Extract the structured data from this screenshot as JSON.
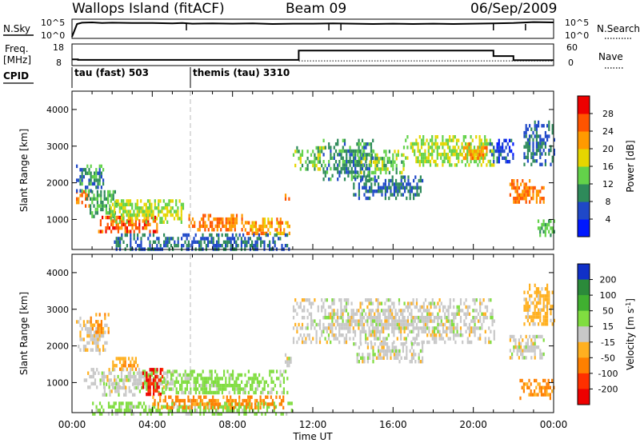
{
  "header": {
    "station": "Wallops Island (fitACF)",
    "beam": "Beam 09",
    "date": "06/Sep/2009"
  },
  "noise_panel": {
    "left_label": "N.Sky",
    "right_label": "N.Search",
    "tick_top": "10^5",
    "tick_bottom": "10^0",
    "series": {
      "x_hours": [
        0.0,
        0.25,
        0.5,
        1,
        1.5,
        2,
        3,
        4,
        5,
        5.5,
        6,
        7,
        8,
        9,
        10,
        11,
        12,
        13,
        14,
        15,
        16,
        17,
        18,
        19,
        20,
        21,
        22,
        23,
        24
      ],
      "log_values": [
        0.0,
        4.0,
        4.4,
        4.5,
        4.3,
        4.4,
        4.3,
        4.3,
        4.2,
        4.3,
        4.1,
        4.2,
        4.1,
        4.2,
        4.0,
        4.1,
        4.1,
        4.2,
        4.1,
        4.0,
        4.1,
        4.0,
        4.1,
        4.0,
        4.1,
        4.2,
        4.3,
        4.6,
        4.5
      ]
    },
    "spikes_hours": [
      5.7,
      12.8,
      13.4,
      21.0,
      22.6
    ]
  },
  "freq_panel": {
    "left_label_1": "Freq.",
    "left_label_2": "[MHz]",
    "right_label": "Nave",
    "tick_left_top": "18",
    "tick_left_bottom": "8",
    "tick_right_top": "60",
    "tick_right_bottom": "0",
    "freq_steps": [
      {
        "from": 0.0,
        "to": 0.3,
        "mhz": 10.5
      },
      {
        "from": 0.3,
        "to": 11.3,
        "mhz": 10.2
      },
      {
        "from": 11.3,
        "to": 21.0,
        "mhz": 15.3
      },
      {
        "from": 21.0,
        "to": 22.0,
        "mhz": 12.3
      },
      {
        "from": 22.0,
        "to": 24.0,
        "mhz": 10.1
      }
    ],
    "nave_level": 10
  },
  "cpid": {
    "label": "CPID",
    "modes": [
      {
        "text": "tau (fast) 503",
        "start_hour": 0.0
      },
      {
        "text": "themis (tau) 3310",
        "start_hour": 5.9
      }
    ]
  },
  "chart_data": [
    {
      "type": "heatmap",
      "title": "Power",
      "ylabel": "Slant Range [km]",
      "xlabel": "Time UT",
      "xlim": [
        0,
        24
      ],
      "ylim": [
        180,
        4500
      ],
      "x_ticks": [
        "00:00",
        "04:00",
        "08:00",
        "12:00",
        "16:00",
        "20:00",
        "00:00"
      ],
      "y_ticks": [
        1000,
        2000,
        3000,
        4000
      ],
      "colorbar": {
        "label": "Power [dB]",
        "levels": [
          4,
          8,
          12,
          16,
          20,
          24,
          28
        ],
        "colors": [
          "#0018ff",
          "#1f48c8",
          "#2e8a5a",
          "#63d24a",
          "#e6d600",
          "#ff9a00",
          "#ff5400",
          "#ee0000"
        ]
      },
      "regions": [
        {
          "x": [
            0.2,
            0.9
          ],
          "y": [
            1400,
            1800
          ],
          "level": 24
        },
        {
          "x": [
            0.2,
            1.6
          ],
          "y": [
            1800,
            2500
          ],
          "level": 10
        },
        {
          "x": [
            0.7,
            2.2
          ],
          "y": [
            1100,
            1800
          ],
          "level": 12
        },
        {
          "x": [
            1.3,
            4.2
          ],
          "y": [
            650,
            1100
          ],
          "level": 26
        },
        {
          "x": [
            1.9,
            5.5
          ],
          "y": [
            950,
            1550
          ],
          "level": 16
        },
        {
          "x": [
            5.8,
            8.8
          ],
          "y": [
            700,
            1150
          ],
          "level": 24
        },
        {
          "x": [
            8.6,
            10.8
          ],
          "y": [
            650,
            1050
          ],
          "level": 22
        },
        {
          "x": [
            2.0,
            10.8
          ],
          "y": [
            180,
            620
          ],
          "level": 8
        },
        {
          "x": [
            10.6,
            11.0
          ],
          "y": [
            1500,
            1800
          ],
          "level": 24
        },
        {
          "x": [
            11.0,
            12.6
          ],
          "y": [
            2400,
            3000
          ],
          "level": 14
        },
        {
          "x": [
            12.5,
            15.0
          ],
          "y": [
            2100,
            3200
          ],
          "level": 10
        },
        {
          "x": [
            14.2,
            16.5
          ],
          "y": [
            2300,
            2900
          ],
          "level": 14
        },
        {
          "x": [
            14.0,
            17.5
          ],
          "y": [
            1600,
            2200
          ],
          "level": 8
        },
        {
          "x": [
            16.5,
            21.0
          ],
          "y": [
            2500,
            3300
          ],
          "level": 16
        },
        {
          "x": [
            19.4,
            20.8
          ],
          "y": [
            2700,
            3100
          ],
          "level": 22
        },
        {
          "x": [
            20.8,
            22.0
          ],
          "y": [
            2600,
            3200
          ],
          "level": 6
        },
        {
          "x": [
            21.8,
            23.5
          ],
          "y": [
            1500,
            2100
          ],
          "level": 24
        },
        {
          "x": [
            22.5,
            24.0
          ],
          "y": [
            2500,
            3700
          ],
          "level": 8
        },
        {
          "x": [
            23.2,
            24.0
          ],
          "y": [
            600,
            1000
          ],
          "level": 12
        }
      ]
    },
    {
      "type": "heatmap",
      "title": "Velocity",
      "ylabel": "Slant Range [km]",
      "xlabel": "Time UT",
      "xlim": [
        0,
        24
      ],
      "ylim": [
        180,
        4500
      ],
      "x_ticks": [
        "00:00",
        "04:00",
        "08:00",
        "12:00",
        "16:00",
        "20:00",
        "00:00"
      ],
      "y_ticks": [
        1000,
        2000,
        3000,
        4000
      ],
      "colorbar": {
        "label_main": "Velocity [m s",
        "label_sup": "-1",
        "label_end": "]",
        "levels": [
          200,
          100,
          50,
          15,
          -15,
          -50,
          -100,
          -200
        ],
        "colors": [
          "#1030c8",
          "#2b8a3a",
          "#40b030",
          "#80dd40",
          "#c8c8c8",
          "#ffb020",
          "#ff8000",
          "#ff3000",
          "#ee0000"
        ]
      },
      "regions": [
        {
          "x": [
            0.2,
            1.7
          ],
          "y": [
            1800,
            2800
          ],
          "level": -5
        },
        {
          "x": [
            0.9,
            1.8
          ],
          "y": [
            2400,
            2900
          ],
          "level": -60
        },
        {
          "x": [
            0.5,
            5.0
          ],
          "y": [
            900,
            1400
          ],
          "level": 0
        },
        {
          "x": [
            2.0,
            3.3
          ],
          "y": [
            1350,
            1700
          ],
          "level": -40
        },
        {
          "x": [
            3.5,
            10.8
          ],
          "y": [
            700,
            1350
          ],
          "level": 30
        },
        {
          "x": [
            1.5,
            3.5
          ],
          "y": [
            700,
            1000
          ],
          "level": 0
        },
        {
          "x": [
            3.5,
            4.5
          ],
          "y": [
            700,
            1400
          ],
          "level": -200
        },
        {
          "x": [
            1.0,
            11.0
          ],
          "y": [
            180,
            480
          ],
          "level": 30
        },
        {
          "x": [
            4.0,
            10.5
          ],
          "y": [
            350,
            650
          ],
          "level": -60
        },
        {
          "x": [
            10.6,
            11.0
          ],
          "y": [
            1400,
            1800
          ],
          "level": 0
        },
        {
          "x": [
            11.0,
            21.0
          ],
          "y": [
            2100,
            3300
          ],
          "level": 0
        },
        {
          "x": [
            14.0,
            17.5
          ],
          "y": [
            1600,
            2100
          ],
          "level": 0
        },
        {
          "x": [
            21.8,
            23.5
          ],
          "y": [
            1700,
            2300
          ],
          "level": 0
        },
        {
          "x": [
            22.3,
            24.0
          ],
          "y": [
            600,
            1100
          ],
          "level": -60
        },
        {
          "x": [
            22.5,
            24.0
          ],
          "y": [
            2600,
            3700
          ],
          "level": -30
        }
      ]
    }
  ]
}
